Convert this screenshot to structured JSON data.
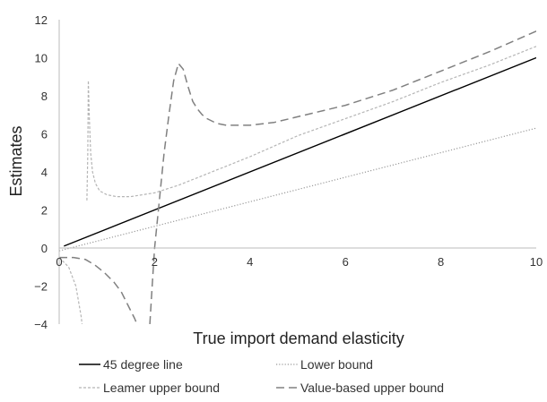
{
  "chart_data": {
    "type": "line",
    "title": "",
    "xlabel": "True import demand elasticity",
    "ylabel": "Estimates",
    "xlim": [
      0,
      10
    ],
    "ylim": [
      -4,
      12
    ],
    "xticks": [
      0,
      2,
      4,
      6,
      8,
      10
    ],
    "yticks": [
      -4,
      -2,
      0,
      2,
      4,
      6,
      8,
      10,
      12
    ],
    "ytick_labels": [
      "−4",
      "−2",
      "0",
      "2",
      "4",
      "6",
      "8",
      "10",
      "12"
    ],
    "grid": false,
    "legend_position": "bottom",
    "series": [
      {
        "name": "45 degree line",
        "color": "#000000",
        "dash": "solid",
        "x": [
          0.1,
          10
        ],
        "y": [
          0.1,
          10
        ]
      },
      {
        "name": "Lower bound",
        "color": "#999999",
        "dash": "dotted",
        "x": [
          0,
          10
        ],
        "y": [
          -0.15,
          6.3
        ]
      },
      {
        "name": "Leamer upper bound",
        "color": "#b5b5b5",
        "dash": "fine-dash",
        "segments": [
          {
            "x": [
              0.0,
              0.2,
              0.35,
              0.42,
              0.46,
              0.48
            ],
            "y": [
              -0.5,
              -1.0,
              -2.0,
              -3.0,
              -3.6,
              -4.0
            ]
          },
          {
            "x": [
              0.58,
              0.6,
              0.61,
              0.63,
              0.66,
              0.7,
              0.76,
              0.85,
              1.0,
              1.2,
              1.5,
              2.0,
              2.5,
              3.0,
              4.0,
              5.0,
              6.0,
              7.0,
              8.0,
              9.0,
              10.0
            ],
            "y": [
              2.5,
              5.0,
              8.8,
              7.0,
              5.0,
              4.0,
              3.4,
              3.0,
              2.8,
              2.7,
              2.7,
              2.9,
              3.3,
              3.8,
              4.8,
              5.9,
              6.8,
              7.7,
              8.7,
              9.6,
              10.6
            ]
          }
        ]
      },
      {
        "name": "Value-based upper bound",
        "color": "#808080",
        "dash": "long-dash",
        "segments": [
          {
            "x": [
              0.0,
              0.3,
              0.55,
              0.75,
              0.95,
              1.15,
              1.3,
              1.4,
              1.5,
              1.58,
              1.63
            ],
            "y": [
              -0.5,
              -0.5,
              -0.6,
              -0.9,
              -1.3,
              -1.8,
              -2.3,
              -2.8,
              -3.3,
              -3.7,
              -4.0
            ]
          },
          {
            "x": [
              1.9,
              1.95,
              2.0,
              2.1,
              2.2,
              2.3,
              2.4,
              2.5,
              2.6,
              2.7,
              2.8,
              2.9,
              3.0,
              3.1,
              3.3,
              3.5,
              4.0,
              4.5,
              5.0,
              6.0,
              7.0,
              8.0,
              9.0,
              10.0
            ],
            "y": [
              -4.0,
              -2.0,
              0.0,
              2.5,
              5.0,
              7.0,
              8.8,
              9.7,
              9.4,
              8.5,
              7.7,
              7.3,
              7.0,
              6.8,
              6.55,
              6.45,
              6.45,
              6.6,
              6.9,
              7.5,
              8.3,
              9.3,
              10.3,
              11.4
            ]
          }
        ]
      }
    ]
  }
}
